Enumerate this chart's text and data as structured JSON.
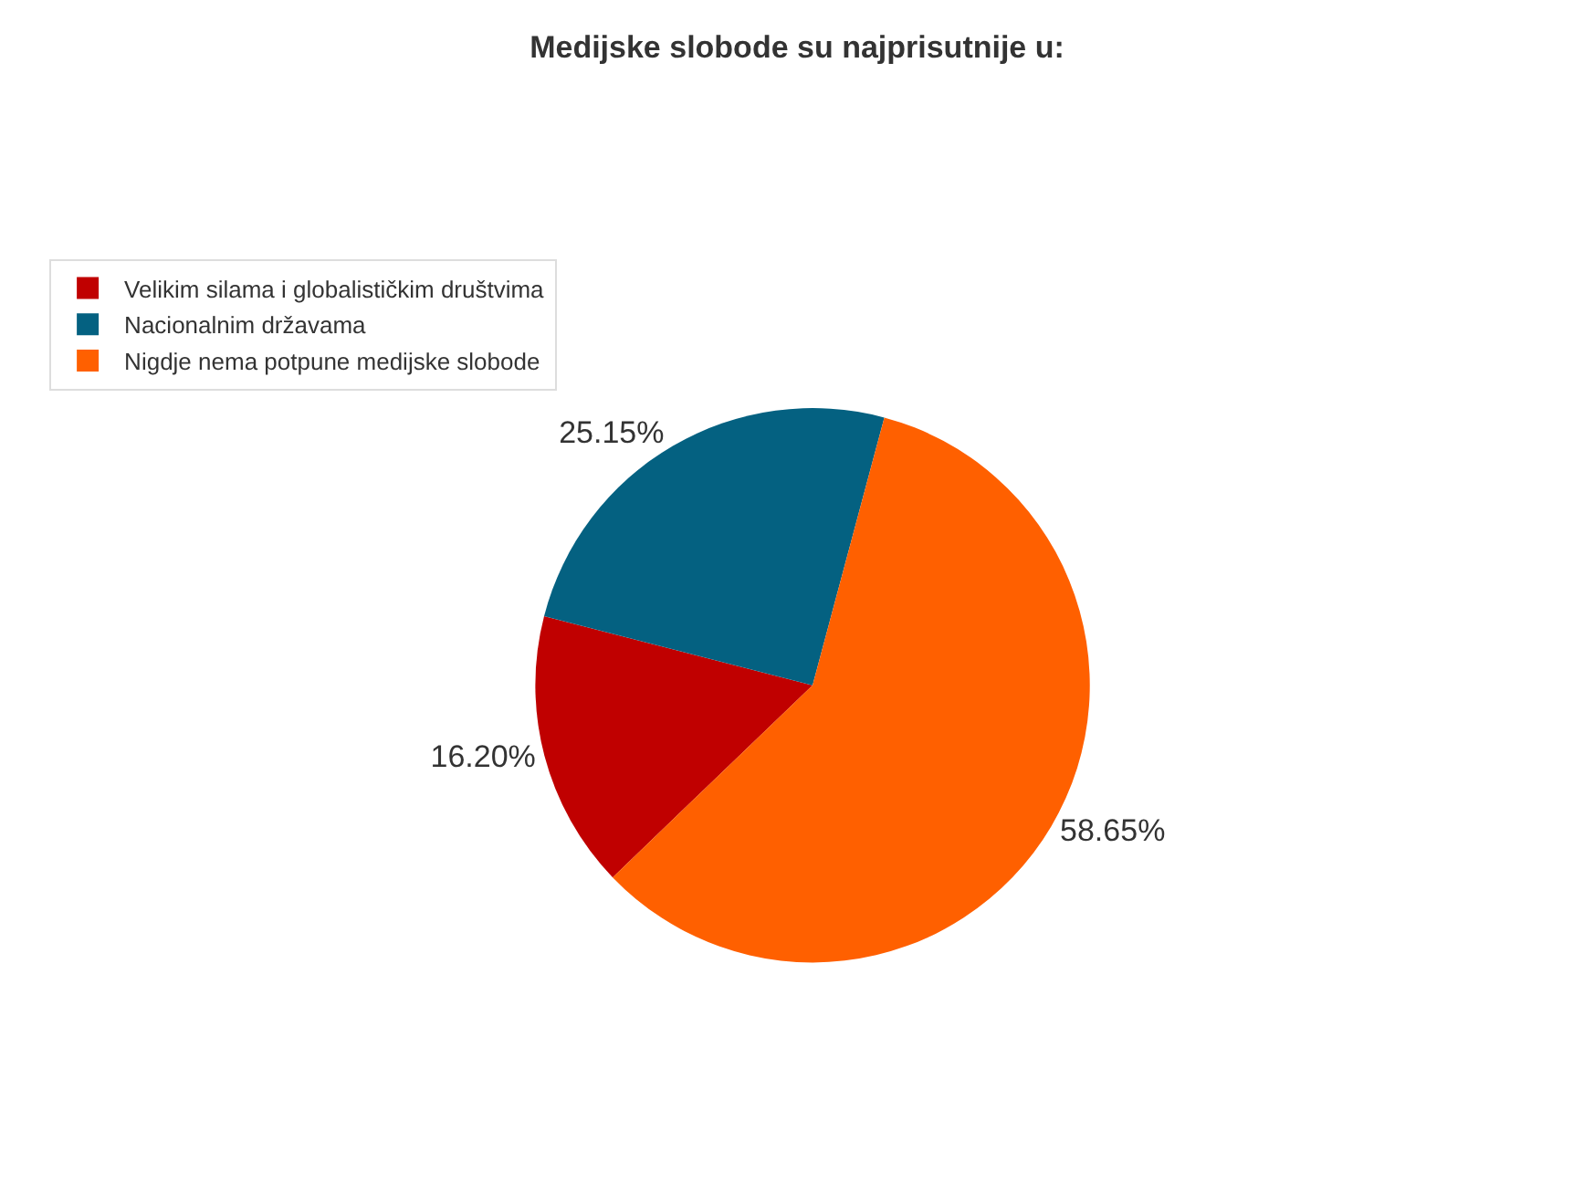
{
  "chart_data": {
    "type": "pie",
    "title": "Medijske slobode su najprisutnije u:",
    "categories": [
      "Velikim silama i globalističkim društvima",
      "Nacionalnim državama",
      "Nigdje nema potpune medijske slobode"
    ],
    "values": [
      16.2,
      25.15,
      58.65
    ],
    "value_labels": [
      "16.20%",
      "25.15%",
      "58.65%"
    ],
    "colors": [
      "#c00000",
      "#046181",
      "#ff6000"
    ],
    "legend": "top left"
  }
}
